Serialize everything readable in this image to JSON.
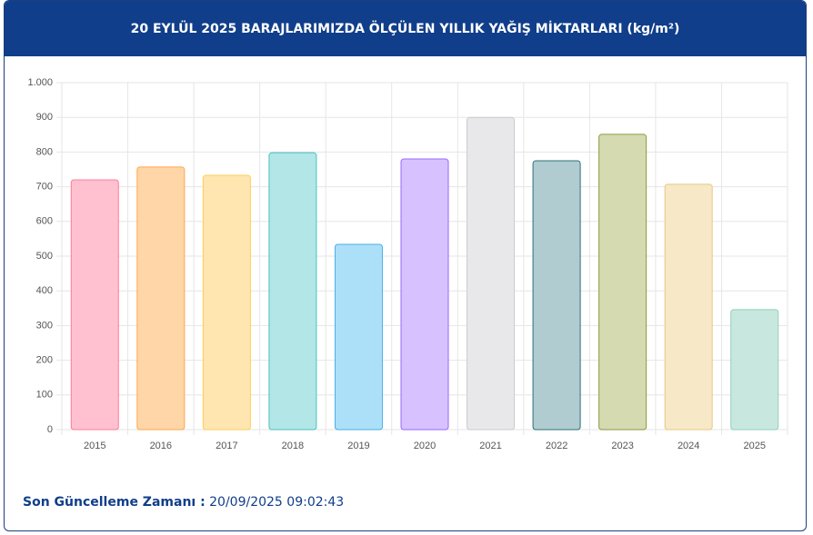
{
  "chart_data": {
    "type": "bar",
    "title": "20 EYLÜL 2025 BARAJLARIMIZDA ÖLÇÜLEN YILLIK YAĞIŞ MİKTARLARI (kg/m²)",
    "categories": [
      "2015",
      "2016",
      "2017",
      "2018",
      "2019",
      "2020",
      "2021",
      "2022",
      "2023",
      "2024",
      "2025"
    ],
    "values": [
      720,
      757,
      733,
      798,
      534,
      780,
      900,
      775,
      851,
      707,
      346
    ],
    "colors": [
      "#ffc0cf",
      "#ffd6a8",
      "#ffe6b0",
      "#b3e6e6",
      "#ace0f8",
      "#d7c2ff",
      "#e8e8ea",
      "#b0ccd0",
      "#d6dab0",
      "#f7e8c8",
      "#c8e8df"
    ],
    "border_colors": [
      "#ff7b98",
      "#ffa54a",
      "#ffcd56",
      "#4bc0c0",
      "#4aaee6",
      "#9966ff",
      "#c9cbcf",
      "#2f6f7a",
      "#8a9a40",
      "#e8c880",
      "#8fcfb8"
    ],
    "ylim": [
      0,
      1000
    ],
    "yticks": [
      0,
      100,
      200,
      300,
      400,
      500,
      600,
      700,
      800,
      900,
      {
        "value": 1000,
        "label": "1.000"
      }
    ],
    "grid": true
  },
  "footer": {
    "label": "Son Güncelleme Zamanı :",
    "value": "20/09/2025 09:02:43"
  }
}
